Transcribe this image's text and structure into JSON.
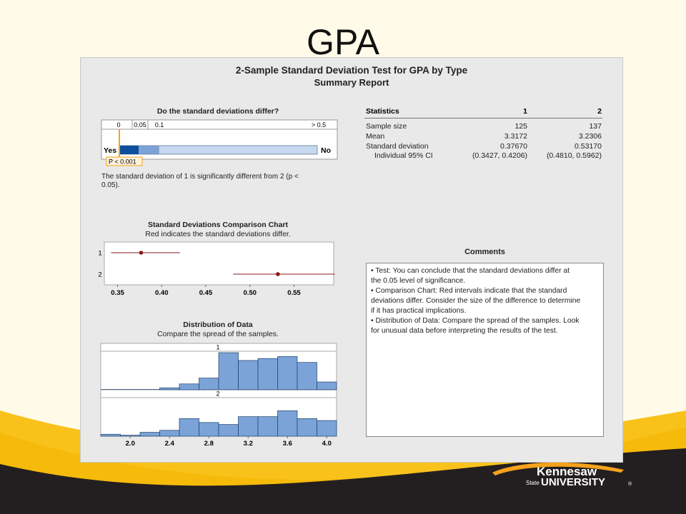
{
  "slide": {
    "title": "GPA"
  },
  "report": {
    "title": "2-Sample Standard Deviation Test for GPA by Type",
    "subtitle": "Summary Report"
  },
  "test_panel": {
    "title": "Do the standard deviations differ?",
    "scale_labels": [
      "0",
      "0.05",
      "0.1",
      "> 0.5"
    ],
    "yes_label": "Yes",
    "no_label": "No",
    "p_label": "P < 0.001",
    "conclusion_line1": "The standard deviation of 1 is significantly different from 2 (p <",
    "conclusion_line2": "0.05)."
  },
  "statistics": {
    "header": "Statistics",
    "columns": [
      "1",
      "2"
    ],
    "rows": [
      {
        "label": "Sample size",
        "values": [
          "125",
          "137"
        ],
        "indent": false
      },
      {
        "label": "Mean",
        "values": [
          "3.3172",
          "3.2306"
        ],
        "indent": false
      },
      {
        "label": "Standard deviation",
        "values": [
          "0.37670",
          "0.53170"
        ],
        "indent": false
      },
      {
        "label": "Individual 95% CI",
        "values": [
          "(0.3427, 0.4206)",
          "(0.4810, 0.5962)"
        ],
        "indent": true
      }
    ]
  },
  "comments": {
    "title": "Comments",
    "lines": [
      "•  Test: You can conclude that the standard deviations differ at",
      "the 0.05 level of significance.",
      "•  Comparison Chart: Red intervals indicate that the standard",
      "deviations differ. Consider the size of the difference to determine",
      "if it has practical implications.",
      "•  Distribution of Data: Compare the spread of the samples. Look",
      "for unusual data before interpreting the results of the test."
    ]
  },
  "branding": {
    "logo_line1": "Kennesaw",
    "logo_state": "State",
    "logo_line2": "UNIVERSITY",
    "registered": "®"
  },
  "colors": {
    "interval_red": "#8b1a1a",
    "bar_fill": "#7ba3d8",
    "bar_dark": "#0d4f9c",
    "bar_light": "#c6d8ef",
    "highlight": "#f6a21c"
  },
  "chart_data": [
    {
      "type": "bar",
      "name": "p-value scale",
      "ticks": [
        "0",
        "0.05",
        "0.1",
        "> 0.5"
      ],
      "p_value": "< 0.001",
      "yes_label": "Yes",
      "no_label": "No"
    },
    {
      "type": "scatter",
      "title": "Standard Deviations Comparison Chart",
      "subtitle": "Red indicates the standard deviations differ.",
      "categories": [
        "1",
        "2"
      ],
      "estimates": [
        0.3767,
        0.5317
      ],
      "ci_low": [
        0.3427,
        0.481
      ],
      "ci_high": [
        0.4206,
        0.5962
      ],
      "xlim": [
        0.335,
        0.595
      ],
      "xticks": [
        0.35,
        0.4,
        0.45,
        0.5,
        0.55
      ],
      "xtick_labels": [
        "0.35",
        "0.40",
        "0.45",
        "0.50",
        "0.55"
      ]
    },
    {
      "type": "bar",
      "title": "Distribution of Data",
      "subtitle": "Compare the spread of the samples.",
      "bin_edges": [
        1.7,
        1.9,
        2.1,
        2.3,
        2.5,
        2.7,
        2.9,
        3.1,
        3.3,
        3.5,
        3.7,
        3.9,
        4.1
      ],
      "xlim": [
        1.7,
        4.1
      ],
      "xticks": [
        2.0,
        2.4,
        2.8,
        3.2,
        3.6,
        4.0
      ],
      "xtick_labels": [
        "2.0",
        "2.4",
        "2.8",
        "3.2",
        "3.6",
        "4.0"
      ],
      "series": [
        {
          "name": "1",
          "values": [
            0,
            0,
            0,
            1,
            3,
            6,
            19,
            15,
            16,
            17,
            14,
            4
          ]
        },
        {
          "name": "2",
          "values": [
            1,
            0.5,
            2,
            3,
            9,
            7,
            6,
            10,
            10,
            13,
            9,
            8
          ]
        }
      ]
    }
  ]
}
